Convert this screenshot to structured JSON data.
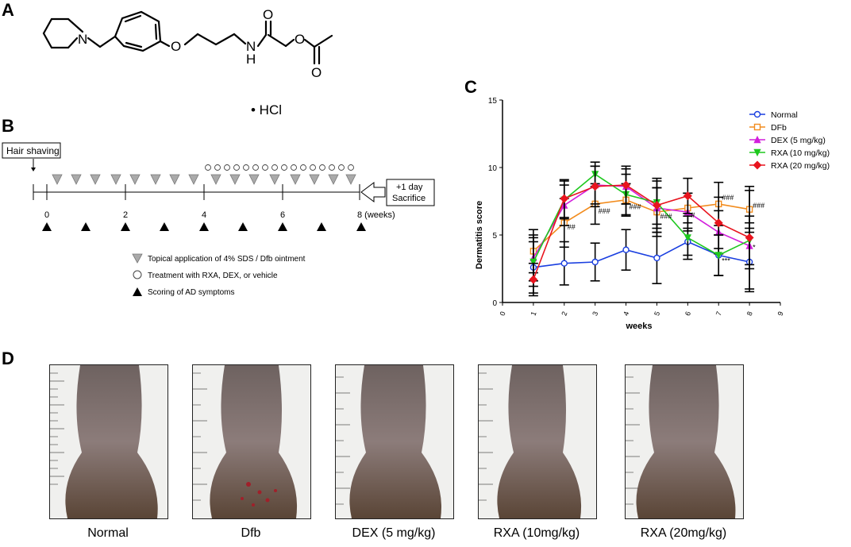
{
  "panels": {
    "a": "A",
    "b": "B",
    "c": "C",
    "d": "D"
  },
  "panel_a": {
    "salt_label": "• HCl",
    "atom_n_ring": "N",
    "atom_o_ether": "O",
    "atom_n_amide": "N",
    "atom_h": "H",
    "atom_o_carbonyl": "O",
    "atom_o_ester": "O",
    "atom_o_acetyl": "O"
  },
  "panel_b": {
    "hair_shaving": "Hair shaving",
    "sacrifice_line1": "+1 day",
    "sacrifice_line2": "Sacrifice",
    "tick_labels": [
      "0",
      "2",
      "4",
      "6",
      "8 (weeks)"
    ],
    "legend": [
      {
        "symbol": "grey-triangle-down-icon",
        "text": "Topical application of 4% SDS / Dfb ointment"
      },
      {
        "symbol": "open-circle-icon",
        "text": "Treatment with RXA, DEX, or vehicle"
      },
      {
        "symbol": "black-triangle-up-icon",
        "text": "Scoring of AD symptoms"
      }
    ]
  },
  "chart_data": {
    "type": "line",
    "xlabel": "weeks",
    "ylabel": "Dermatitis score",
    "xlim": [
      0,
      9
    ],
    "ylim": [
      0,
      15
    ],
    "xticks": [
      "0",
      "1",
      "2",
      "3",
      "4",
      "5",
      "6",
      "7",
      "8",
      "9"
    ],
    "yticks": [
      "0",
      "5",
      "10",
      "15"
    ],
    "legend_position": "top-right",
    "x": [
      1,
      2,
      3,
      4,
      5,
      6,
      7,
      8
    ],
    "series": [
      {
        "name": "Normal",
        "color": "#1a3fe0",
        "marker": "circle",
        "values": [
          2.6,
          2.9,
          3.0,
          3.9,
          3.3,
          4.5,
          3.5,
          3.0
        ],
        "errors": [
          1.9,
          1.6,
          1.4,
          1.5,
          1.9,
          1.0,
          1.5,
          2.2
        ]
      },
      {
        "name": "DFb",
        "color": "#f28c1e",
        "marker": "square",
        "values": [
          3.8,
          5.9,
          7.3,
          7.6,
          6.7,
          7.0,
          7.3,
          6.9
        ],
        "errors": [
          1.6,
          1.8,
          1.5,
          1.2,
          1.8,
          1.1,
          1.6,
          1.4
        ]
      },
      {
        "name": "DEX (5 mg/kg)",
        "color": "#d21edc",
        "marker": "triangle-up",
        "values": [
          3.3,
          7.2,
          8.7,
          8.6,
          7.0,
          6.7,
          5.2,
          4.2
        ],
        "errors": [
          1.7,
          1.5,
          1.4,
          1.3,
          1.5,
          1.4,
          1.6,
          1.7
        ]
      },
      {
        "name": "RXA (10 mg/kg)",
        "color": "#1ec81e",
        "marker": "triangle-down",
        "values": [
          3.0,
          7.6,
          9.5,
          8.0,
          7.4,
          4.8,
          3.5,
          4.6
        ],
        "errors": [
          1.8,
          1.4,
          0.9,
          1.5,
          1.6,
          1.6,
          1.5,
          1.8
        ]
      },
      {
        "name": "RXA (20 mg/kg)",
        "color": "#e8141e",
        "marker": "diamond",
        "values": [
          1.7,
          7.7,
          8.6,
          8.7,
          7.2,
          7.9,
          5.9,
          4.8
        ],
        "errors": [
          1.2,
          1.4,
          1.5,
          1.4,
          2.0,
          1.3,
          1.9,
          3.8
        ]
      }
    ],
    "annotations": [
      {
        "x": 2,
        "y": 5.4,
        "text": "##"
      },
      {
        "x": 3,
        "y": 6.6,
        "text": "###"
      },
      {
        "x": 4,
        "y": 6.9,
        "text": "###"
      },
      {
        "x": 5,
        "y": 6.2,
        "text": "###"
      },
      {
        "x": 6,
        "y": 6.3,
        "text": "#"
      },
      {
        "x": 7,
        "y": 7.6,
        "text": "###"
      },
      {
        "x": 8,
        "y": 7.0,
        "text": "###"
      },
      {
        "x": 7,
        "y": 2.9,
        "text": "***"
      },
      {
        "x": 8,
        "y": 3.9,
        "text": "*"
      }
    ]
  },
  "panel_d": {
    "captions": [
      "Normal",
      "Dfb",
      "DEX (5 mg/kg)",
      "RXA (10mg/kg)",
      "RXA (20mg/kg)"
    ]
  }
}
